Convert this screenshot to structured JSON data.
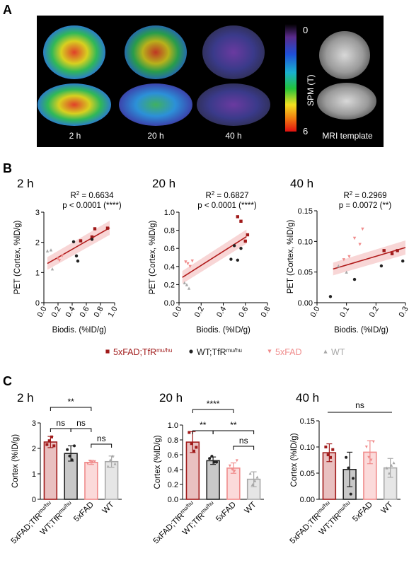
{
  "panel_labels": [
    "A",
    "B",
    "C"
  ],
  "panel_a": {
    "timepoints": [
      "2 h",
      "20 h",
      "40 h"
    ],
    "mri_label": "MRI template",
    "colorbar": {
      "label": "SPM (T)",
      "min": "0",
      "max": "6"
    }
  },
  "legend": {
    "items": [
      {
        "label": "5xFAD;TfR",
        "sup": "mu/hu",
        "marker": "square",
        "color": "#a01a1a"
      },
      {
        "label": "WT;TfR",
        "sup": "mu/hu",
        "marker": "circle",
        "color": "#222222"
      },
      {
        "label": "5xFAD",
        "sup": "",
        "marker": "triangle-down",
        "color": "#f08c8c"
      },
      {
        "label": "WT",
        "sup": "",
        "marker": "triangle-up",
        "color": "#a8a8a8"
      }
    ]
  },
  "colors": {
    "5xFAD;TfR": "#a01a1a",
    "WT;TfR": "#222222",
    "5xFAD": "#f08c8c",
    "WT": "#a8a8a8",
    "fit": "#b01a1a",
    "band": "#f3b5b5"
  },
  "chart_data": [
    {
      "panel": "B",
      "type": "scatter",
      "title": "2 h",
      "r2_text": "0.6634",
      "p_text": "p < 0.0001 (****)",
      "xlabel": "Biodis. (%ID/g)",
      "ylabel": "PET (Cortex, %ID/g)",
      "xlim": [
        0,
        1.0
      ],
      "ylim": [
        0,
        3
      ],
      "xticks": [
        "0.0",
        "0.2",
        "0.4",
        "0.6",
        "0.8",
        "1.0"
      ],
      "yticks": [
        "0",
        "1",
        "2",
        "3"
      ],
      "fit": {
        "x": [
          0.05,
          0.93
        ],
        "y": [
          1.3,
          2.48
        ]
      },
      "series": [
        {
          "name": "5xFAD;TfR",
          "x": [
            0.52,
            0.68,
            0.72,
            0.9
          ],
          "y": [
            2.05,
            2.18,
            2.45,
            2.47
          ]
        },
        {
          "name": "WT;TfR",
          "x": [
            0.42,
            0.46,
            0.48,
            0.68
          ],
          "y": [
            2.02,
            1.55,
            1.38,
            2.1
          ]
        },
        {
          "name": "5xFAD",
          "x": [
            0.2,
            0.22,
            0.26
          ],
          "y": [
            1.45,
            1.4,
            1.55
          ]
        },
        {
          "name": "WT",
          "x": [
            0.05,
            0.1,
            0.12
          ],
          "y": [
            1.72,
            1.75,
            1.12
          ]
        }
      ]
    },
    {
      "panel": "B",
      "type": "scatter",
      "title": "20 h",
      "r2_text": "0.6827",
      "p_text": "p < 0.0001 (****)",
      "xlabel": "Biodis. (%ID/g)",
      "ylabel": "PET (Cortex, %ID/g)",
      "xlim": [
        0,
        0.8
      ],
      "ylim": [
        0,
        1.0
      ],
      "xticks": [
        "0.0",
        "0.2",
        "0.4",
        "0.6",
        "0.8"
      ],
      "yticks": [
        "0.0",
        "0.2",
        "0.4",
        "0.6",
        "0.8",
        "1.0"
      ],
      "fit": {
        "x": [
          0.03,
          0.61
        ],
        "y": [
          0.28,
          0.73
        ]
      },
      "series": [
        {
          "name": "5xFAD;TfR",
          "x": [
            0.53,
            0.56,
            0.6,
            0.62
          ],
          "y": [
            0.95,
            0.9,
            0.68,
            0.75
          ]
        },
        {
          "name": "WT;TfR",
          "x": [
            0.47,
            0.5,
            0.53,
            0.56
          ],
          "y": [
            0.48,
            0.63,
            0.47,
            0.6
          ]
        },
        {
          "name": "5xFAD",
          "x": [
            0.06,
            0.08,
            0.1,
            0.12
          ],
          "y": [
            0.45,
            0.43,
            0.4,
            0.46
          ]
        },
        {
          "name": "WT",
          "x": [
            0.05,
            0.07,
            0.09
          ],
          "y": [
            0.22,
            0.2,
            0.16
          ]
        }
      ]
    },
    {
      "panel": "B",
      "type": "scatter",
      "title": "40 h",
      "r2_text": "0.2969",
      "p_text": "p = 0.0072 (**)",
      "xlabel": "Biodis. (%ID/g)",
      "ylabel": "PET (Cortex, %ID/g)",
      "xlim": [
        0,
        0.33
      ],
      "ylim": [
        0,
        0.15
      ],
      "xticks": [
        "0.0",
        "0.1",
        "0.2",
        "0.3"
      ],
      "yticks": [
        "0.00",
        "0.05",
        "0.10",
        "0.15"
      ],
      "fit": {
        "x": [
          0.06,
          0.33
        ],
        "y": [
          0.055,
          0.09
        ]
      },
      "series": [
        {
          "name": "5xFAD;TfR",
          "x": [
            0.25,
            0.28,
            0.3
          ],
          "y": [
            0.085,
            0.08,
            0.085
          ]
        },
        {
          "name": "WT;TfR",
          "x": [
            0.05,
            0.14,
            0.24,
            0.32
          ],
          "y": [
            0.01,
            0.038,
            0.06,
            0.068
          ]
        },
        {
          "name": "5xFAD",
          "x": [
            0.1,
            0.12,
            0.14,
            0.16,
            0.17
          ],
          "y": [
            0.07,
            0.075,
            0.105,
            0.095,
            0.12
          ]
        },
        {
          "name": "WT",
          "x": [
            0.08,
            0.11
          ],
          "y": [
            0.06,
            0.05
          ]
        }
      ]
    },
    {
      "panel": "C",
      "type": "bar",
      "title": "2 h",
      "ylabel": "Cortex (%ID/g)",
      "categories": [
        "5xFAD;TfR",
        "WT;TfR",
        "5xFAD",
        "WT"
      ],
      "cat_sup": [
        "mu/hu",
        "mu/hu",
        "",
        ""
      ],
      "ylim": [
        0,
        3
      ],
      "yticks": [
        "0",
        "1",
        "2",
        "3"
      ],
      "values": [
        2.25,
        1.8,
        1.45,
        1.48
      ],
      "errors": [
        0.22,
        0.3,
        0.08,
        0.22
      ],
      "points": [
        [
          2.15,
          2.3,
          2.45,
          2.1
        ],
        [
          1.95,
          1.7,
          1.55,
          2.1
        ],
        [
          1.4,
          1.5,
          1.45,
          1.48
        ],
        [
          1.3,
          1.55,
          1.7,
          1.4
        ]
      ],
      "significance": [
        {
          "from": 0,
          "to": 2,
          "label": "**",
          "level": 2
        },
        {
          "from": 0,
          "to": 1,
          "label": "ns",
          "level": 1
        },
        {
          "from": 1,
          "to": 2,
          "label": "ns",
          "level": 1
        },
        {
          "from": 2,
          "to": 3,
          "label": "ns",
          "level": 0
        }
      ]
    },
    {
      "panel": "C",
      "type": "bar",
      "title": "20 h",
      "ylabel": "Cortex (%ID/g)",
      "categories": [
        "5xFAD;TfR",
        "WT;TfR",
        "5xFAD",
        "WT"
      ],
      "cat_sup": [
        "mu/hu",
        "mu/hu",
        "",
        ""
      ],
      "ylim": [
        0,
        1.0
      ],
      "yticks": [
        "0.0",
        "0.2",
        "0.4",
        "0.6",
        "0.8",
        "1.0"
      ],
      "values": [
        0.77,
        0.52,
        0.42,
        0.27
      ],
      "errors": [
        0.14,
        0.05,
        0.07,
        0.1
      ],
      "points": [
        [
          0.9,
          0.75,
          0.65,
          0.7
        ],
        [
          0.55,
          0.58,
          0.5,
          0.5
        ],
        [
          0.45,
          0.4,
          0.38,
          0.52
        ],
        [
          0.35,
          0.2,
          0.25,
          0.3
        ]
      ],
      "significance": [
        {
          "from": 0,
          "to": 2,
          "label": "****",
          "level": 2
        },
        {
          "from": 0,
          "to": 1,
          "label": "**",
          "level": 1
        },
        {
          "from": 1,
          "to": 3,
          "label": "**",
          "level": 1
        },
        {
          "from": 2,
          "to": 3,
          "label": "ns",
          "level": 0
        }
      ]
    },
    {
      "panel": "C",
      "type": "bar",
      "title": "40 h",
      "ylabel": "Cortex (%ID/g)",
      "categories": [
        "5xFAD;TfR",
        "WT;TfR",
        "5xFAD",
        "WT"
      ],
      "cat_sup": [
        "mu/hu",
        "mu/hu",
        "",
        ""
      ],
      "ylim": [
        0,
        0.15
      ],
      "yticks": [
        "0.00",
        "0.05",
        "0.10",
        "0.15"
      ],
      "values": [
        0.089,
        0.057,
        0.09,
        0.06
      ],
      "errors": [
        0.017,
        0.033,
        0.022,
        0.018
      ],
      "points": [
        [
          0.1,
          0.085,
          0.08,
          0.095
        ],
        [
          0.08,
          0.06,
          0.01,
          0.04
        ],
        [
          0.1,
          0.08,
          0.075,
          0.11
        ],
        [
          0.06,
          0.05,
          0.065,
          0.07
        ]
      ],
      "significance": [
        {
          "from": 0,
          "to": 3,
          "label": "ns",
          "level": 2
        }
      ]
    }
  ]
}
